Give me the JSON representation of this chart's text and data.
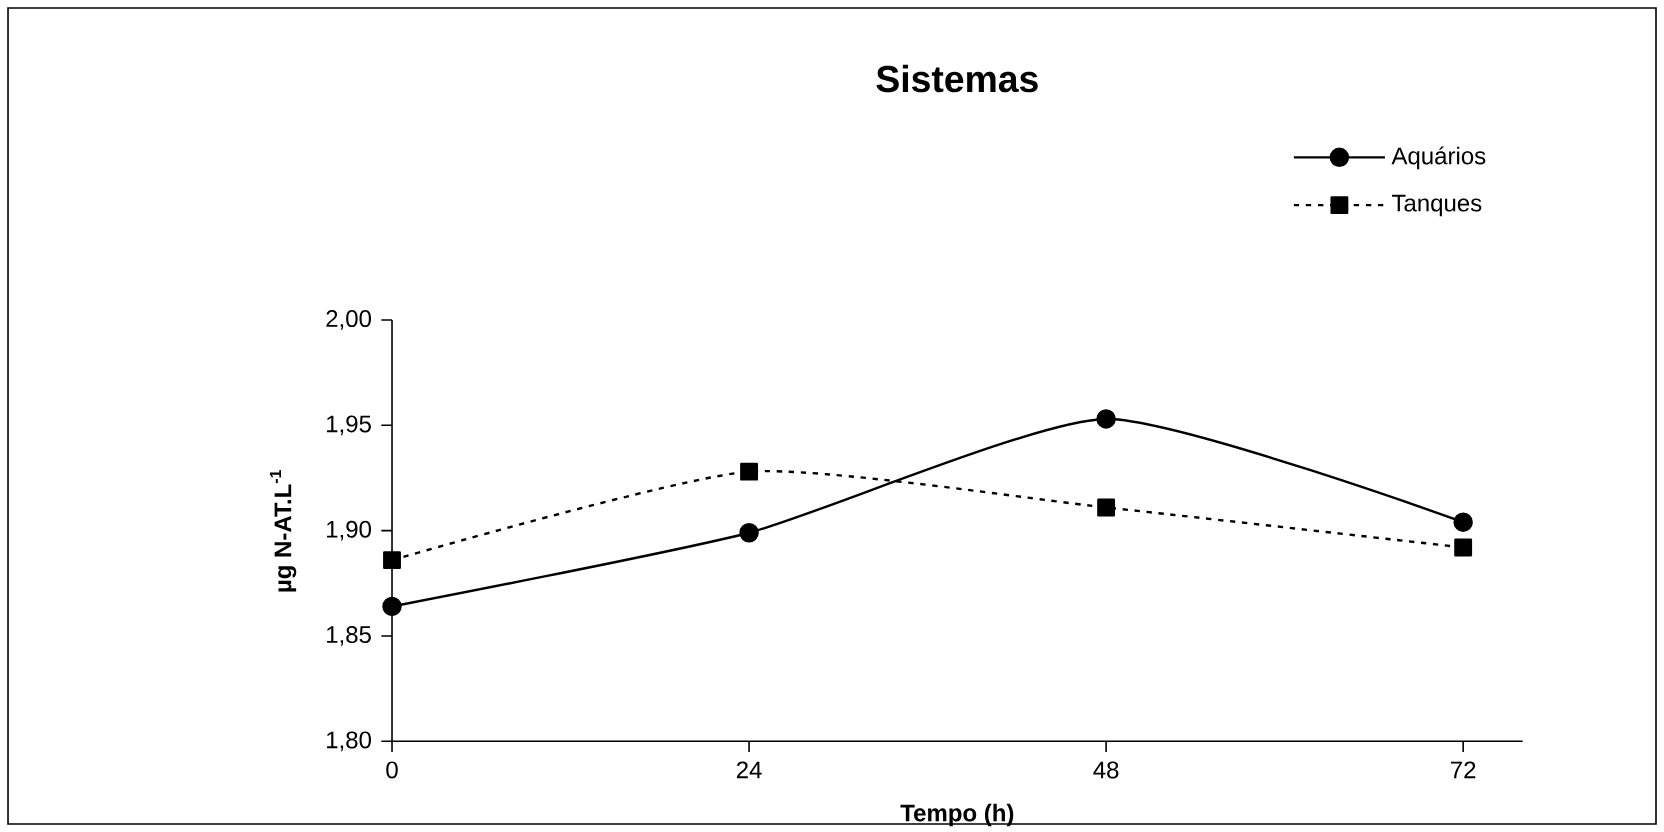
{
  "chart_data": {
    "type": "line",
    "title": "Sistemas",
    "xlabel": "Tempo (h)",
    "ylabel": "µg N-AT.L$^{-1}$",
    "x": [
      0,
      24,
      48,
      72
    ],
    "series": [
      {
        "name": "Aquários",
        "color": "#000000",
        "marker": "circle",
        "line_style": "solid",
        "values": [
          1.864,
          1.899,
          1.953,
          1.904
        ]
      },
      {
        "name": "Tanques",
        "color": "#000000",
        "marker": "square",
        "line_style": "dotted",
        "values": [
          1.886,
          1.928,
          1.911,
          1.892
        ]
      }
    ],
    "xlim": [
      0,
      76
    ],
    "xticks": [
      0,
      24,
      48,
      72
    ],
    "ylim": [
      1.8,
      2.0
    ],
    "yticks": [
      {
        "value": 1.8,
        "label": "1,80"
      },
      {
        "value": 1.85,
        "label": "1,85"
      },
      {
        "value": 1.9,
        "label": "1,90"
      },
      {
        "value": 1.95,
        "label": "1,95"
      },
      {
        "value": 2.0,
        "label": "2,00"
      }
    ],
    "grid": false,
    "legend": "top right"
  }
}
